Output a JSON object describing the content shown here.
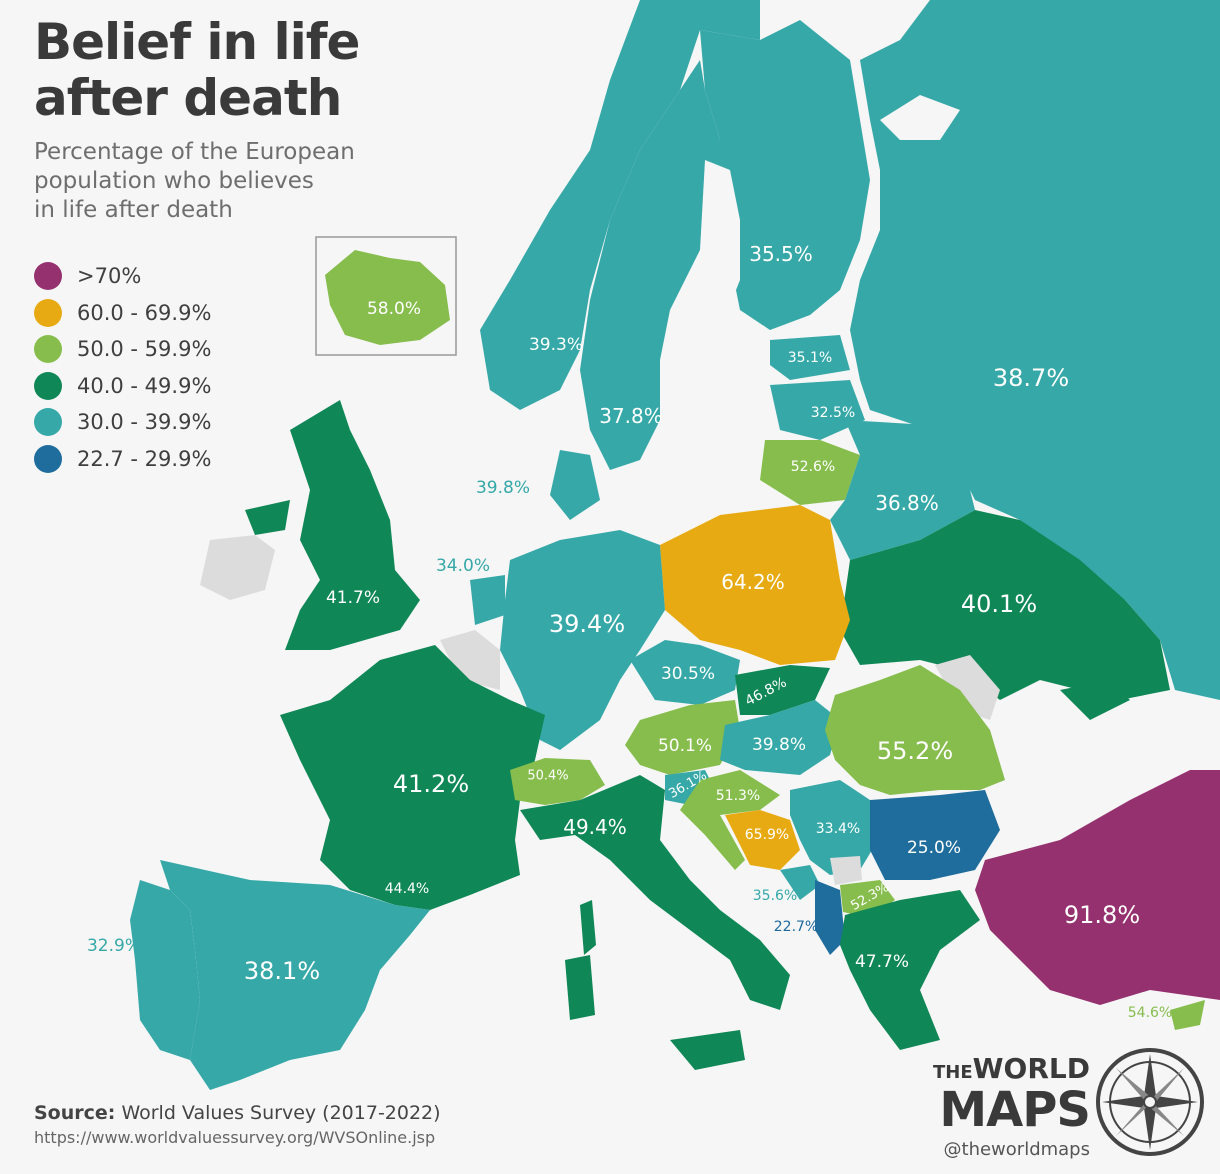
{
  "title_lines": [
    "Belief in life",
    "after death"
  ],
  "subtitle_lines": [
    "Percentage of the European",
    "population who believes",
    "in life after death"
  ],
  "legend": [
    {
      "label": ">70%",
      "color": "#96316f"
    },
    {
      "label": "60.0 - 69.9%",
      "color": "#e8aa12"
    },
    {
      "label": "50.0 - 59.9%",
      "color": "#86bd4c"
    },
    {
      "label": "40.0 - 49.9%",
      "color": "#0f8757"
    },
    {
      "label": "30.0 - 39.9%",
      "color": "#36a8a8"
    },
    {
      "label": "22.7 - 29.9%",
      "color": "#1f6d9c"
    }
  ],
  "countries": [
    {
      "name": "Iceland",
      "label": "58.0%"
    },
    {
      "name": "Finland",
      "label": "35.5%"
    },
    {
      "name": "Norway",
      "label": "39.3%"
    },
    {
      "name": "Russia",
      "label": "38.7%"
    },
    {
      "name": "Estonia",
      "label": "35.1%"
    },
    {
      "name": "Sweden",
      "label": "37.8%"
    },
    {
      "name": "Latvia",
      "label": "32.5%"
    },
    {
      "name": "Lithuania",
      "label": "52.6%"
    },
    {
      "name": "Denmark",
      "label": "39.8%"
    },
    {
      "name": "Belarus",
      "label": "36.8%"
    },
    {
      "name": "Netherlands",
      "label": "34.0%"
    },
    {
      "name": "Poland",
      "label": "64.2%"
    },
    {
      "name": "United Kingdom",
      "label": "41.7%"
    },
    {
      "name": "Ukraine",
      "label": "40.1%"
    },
    {
      "name": "Germany",
      "label": "39.4%"
    },
    {
      "name": "Czechia",
      "label": "30.5%"
    },
    {
      "name": "Slovakia",
      "label": "46.8%"
    },
    {
      "name": "Austria",
      "label": "50.1%"
    },
    {
      "name": "Hungary",
      "label": "39.8%"
    },
    {
      "name": "Romania",
      "label": "55.2%"
    },
    {
      "name": "France",
      "label": "41.2%"
    },
    {
      "name": "Switzerland",
      "label": "50.4%"
    },
    {
      "name": "Slovenia",
      "label": "36.1%"
    },
    {
      "name": "Croatia",
      "label": "51.3%"
    },
    {
      "name": "Italy",
      "label": "49.4%"
    },
    {
      "name": "Serbia",
      "label": "33.4%"
    },
    {
      "name": "Bosnia and Herzegovina",
      "label": "65.9%"
    },
    {
      "name": "Bulgaria",
      "label": "25.0%"
    },
    {
      "name": "Andorra",
      "label": "44.4%"
    },
    {
      "name": "Montenegro",
      "label": "35.6%"
    },
    {
      "name": "North Macedonia",
      "label": "52.3%"
    },
    {
      "name": "Portugal",
      "label": "32.9%"
    },
    {
      "name": "Spain",
      "label": "38.1%"
    },
    {
      "name": "Albania",
      "label": "22.7%"
    },
    {
      "name": "Greece",
      "label": "47.7%"
    },
    {
      "name": "Turkey",
      "label": "91.8%"
    },
    {
      "name": "Cyprus",
      "label": "54.6%"
    }
  ],
  "source": {
    "prefix": "Source:",
    "text": "World Values Survey (2017-2022)",
    "url": "https://www.worldvaluessurvey.org/WVSOnline.jsp"
  },
  "brand": {
    "the": "THE",
    "world": "WORLD",
    "maps": "MAPS",
    "handle": "@theworldmaps"
  }
}
